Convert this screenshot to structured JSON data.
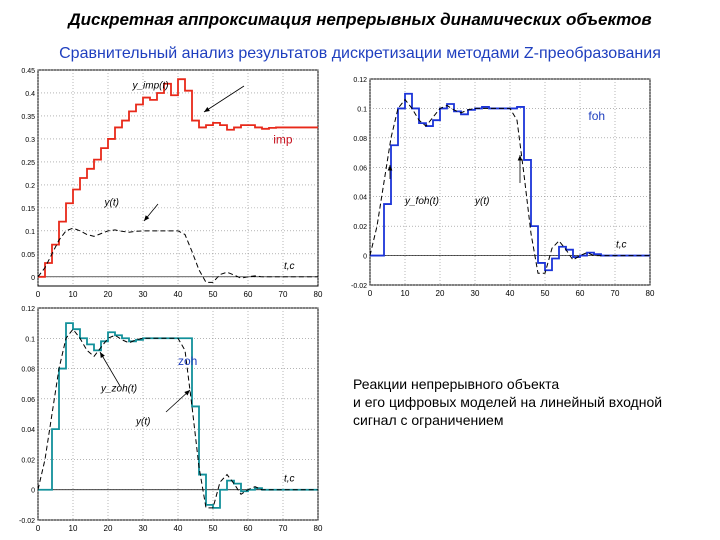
{
  "title": "Дискретная аппроксимация непрерывных динамических объектов",
  "subtitle": "Сравнительный анализ результатов дискретизации методами Z-преобразования",
  "caption": [
    "Реакции непрерывного объекта",
    "и его цифровых моделей на линейный входной",
    "сигнал с ограничением"
  ],
  "colors": {
    "imp": "#e8291a",
    "foh": "#1b34d8",
    "zoh": "#12909a",
    "continuous": "#000000",
    "subtitle": "#1f3fbf",
    "label": "#1f3fbf"
  },
  "chart_data": [
    {
      "id": "imp",
      "type": "line",
      "label": "imp",
      "x_axis_label": "t,c",
      "xlim": [
        0,
        80
      ],
      "ylim": [
        -0.02,
        0.45
      ],
      "x_ticks": [
        0,
        10,
        20,
        30,
        40,
        50,
        60,
        70,
        80
      ],
      "y_ticks": [
        0,
        0.05,
        0.1,
        0.15,
        0.2,
        0.25,
        0.3,
        0.35,
        0.4,
        0.45
      ],
      "y_tick_labels": [
        "0",
        "0.05",
        "0.1",
        "0.15",
        "0.2",
        "0.25",
        "0.3",
        "0.35",
        "0.4",
        "0.45"
      ],
      "grid": true,
      "series": [
        {
          "name": "y_imp(t)",
          "step": true,
          "x": [
            0,
            2,
            4,
            6,
            8,
            10,
            12,
            14,
            16,
            18,
            20,
            22,
            24,
            26,
            28,
            30,
            32,
            34,
            36,
            38,
            40,
            42,
            44,
            46,
            48,
            50,
            52,
            54,
            56,
            58,
            60,
            62,
            64,
            66,
            68,
            70,
            72,
            74,
            76,
            78,
            80
          ],
          "y": [
            0,
            0.03,
            0.07,
            0.12,
            0.16,
            0.19,
            0.215,
            0.235,
            0.255,
            0.28,
            0.3,
            0.325,
            0.34,
            0.36,
            0.375,
            0.39,
            0.385,
            0.4,
            0.42,
            0.395,
            0.43,
            0.405,
            0.34,
            0.325,
            0.33,
            0.335,
            0.33,
            0.32,
            0.325,
            0.33,
            0.33,
            0.325,
            0.322,
            0.324,
            0.325,
            0.325,
            0.325,
            0.325,
            0.325,
            0.325,
            0.325
          ]
        },
        {
          "name": "y(t)",
          "dashed": true,
          "x": [
            0,
            2,
            4,
            6,
            8,
            10,
            12,
            14,
            16,
            18,
            20,
            22,
            24,
            26,
            28,
            30,
            32,
            34,
            36,
            38,
            40,
            42,
            44,
            46,
            48,
            50,
            52,
            54,
            56,
            58,
            60,
            62,
            64,
            66,
            68,
            70,
            72,
            74,
            76,
            78,
            80
          ],
          "y": [
            0,
            0.02,
            0.05,
            0.08,
            0.1,
            0.106,
            0.1,
            0.092,
            0.088,
            0.094,
            0.1,
            0.102,
            0.099,
            0.097,
            0.099,
            0.1,
            0.1,
            0.1,
            0.1,
            0.1,
            0.1,
            0.092,
            0.055,
            0.015,
            -0.012,
            -0.012,
            0.005,
            0.01,
            0.004,
            -0.003,
            0,
            0.002,
            0,
            0,
            0,
            0,
            0,
            0,
            0,
            0,
            0
          ]
        }
      ],
      "annotations": [
        {
          "text": "y_imp(t)",
          "at": [
            27,
            0.41
          ]
        },
        {
          "text": "y(t)",
          "at": [
            19,
            0.155
          ]
        }
      ]
    },
    {
      "id": "foh",
      "type": "line",
      "label": "foh",
      "x_axis_label": "t,c",
      "xlim": [
        0,
        80
      ],
      "ylim": [
        -0.02,
        0.12
      ],
      "x_ticks": [
        0,
        10,
        20,
        30,
        40,
        50,
        60,
        70,
        80
      ],
      "y_ticks": [
        -0.02,
        0,
        0.02,
        0.04,
        0.06,
        0.08,
        0.1,
        0.12
      ],
      "y_tick_labels": [
        "-0.02",
        "0",
        "0.02",
        "0.04",
        "0.06",
        "0.08",
        "0.1",
        "0.12"
      ],
      "grid": true,
      "series": [
        {
          "name": "y_foh(t)",
          "step": true,
          "x": [
            0,
            2,
            4,
            6,
            8,
            10,
            12,
            14,
            16,
            18,
            20,
            22,
            24,
            26,
            28,
            30,
            32,
            34,
            36,
            38,
            40,
            42,
            44,
            46,
            48,
            50,
            52,
            54,
            56,
            58,
            60,
            62,
            64,
            66,
            68,
            70,
            72,
            74,
            76,
            78,
            80
          ],
          "y": [
            0,
            0,
            0.035,
            0.075,
            0.1,
            0.11,
            0.1,
            0.09,
            0.088,
            0.092,
            0.1,
            0.103,
            0.098,
            0.096,
            0.099,
            0.1,
            0.101,
            0.1,
            0.1,
            0.1,
            0.1,
            0.101,
            0.065,
            0.02,
            -0.005,
            -0.01,
            -0.002,
            0.006,
            0.004,
            -0.001,
            0,
            0.002,
            0.001,
            0,
            0,
            0,
            0,
            0,
            0,
            0,
            0
          ]
        },
        {
          "name": "y(t)",
          "dashed": true,
          "x": [
            0,
            2,
            4,
            6,
            8,
            10,
            12,
            14,
            16,
            18,
            20,
            22,
            24,
            26,
            28,
            30,
            32,
            34,
            36,
            38,
            40,
            42,
            44,
            46,
            48,
            50,
            52,
            54,
            56,
            58,
            60,
            62,
            64,
            66,
            68,
            70,
            72,
            74,
            76,
            78,
            80
          ],
          "y": [
            0,
            0.02,
            0.05,
            0.08,
            0.1,
            0.106,
            0.1,
            0.092,
            0.088,
            0.094,
            0.1,
            0.102,
            0.099,
            0.097,
            0.099,
            0.1,
            0.1,
            0.1,
            0.1,
            0.1,
            0.1,
            0.092,
            0.055,
            0.015,
            -0.012,
            -0.012,
            0.005,
            0.01,
            0.004,
            -0.003,
            0,
            0.002,
            0,
            0,
            0,
            0,
            0,
            0,
            0,
            0,
            0
          ]
        }
      ],
      "annotations": [
        {
          "text": "y_foh(t)",
          "at": [
            10,
            0.035
          ]
        },
        {
          "text": "y(t)",
          "at": [
            30,
            0.035
          ]
        }
      ]
    },
    {
      "id": "zoh",
      "type": "line",
      "label": "zoh",
      "x_axis_label": "t,c",
      "xlim": [
        0,
        80
      ],
      "ylim": [
        -0.02,
        0.12
      ],
      "x_ticks": [
        0,
        10,
        20,
        30,
        40,
        50,
        60,
        70,
        80
      ],
      "y_ticks": [
        -0.02,
        0,
        0.02,
        0.04,
        0.06,
        0.08,
        0.1,
        0.12
      ],
      "y_tick_labels": [
        "-0.02",
        "0",
        "0.02",
        "0.04",
        "0.06",
        "0.08",
        "0.1",
        "0.12"
      ],
      "grid": true,
      "series": [
        {
          "name": "y_zoh(t)",
          "step": true,
          "x": [
            0,
            2,
            4,
            6,
            8,
            10,
            12,
            14,
            16,
            18,
            20,
            22,
            24,
            26,
            28,
            30,
            32,
            34,
            36,
            38,
            40,
            42,
            44,
            46,
            48,
            50,
            52,
            54,
            56,
            58,
            60,
            62,
            64,
            66,
            68,
            70,
            72,
            74,
            76,
            78,
            80
          ],
          "y": [
            0,
            0,
            0.04,
            0.08,
            0.11,
            0.106,
            0.1,
            0.096,
            0.092,
            0.098,
            0.104,
            0.102,
            0.1,
            0.098,
            0.099,
            0.1,
            0.1,
            0.1,
            0.1,
            0.1,
            0.1,
            0.1,
            0.055,
            0.01,
            -0.01,
            -0.012,
            0,
            0.006,
            0.004,
            -0.001,
            0,
            0.001,
            0,
            0,
            0,
            0,
            0,
            0,
            0,
            0,
            0
          ]
        },
        {
          "name": "y(t)",
          "dashed": true,
          "x": [
            0,
            2,
            4,
            6,
            8,
            10,
            12,
            14,
            16,
            18,
            20,
            22,
            24,
            26,
            28,
            30,
            32,
            34,
            36,
            38,
            40,
            42,
            44,
            46,
            48,
            50,
            52,
            54,
            56,
            58,
            60,
            62,
            64,
            66,
            68,
            70,
            72,
            74,
            76,
            78,
            80
          ],
          "y": [
            0,
            0.02,
            0.05,
            0.08,
            0.1,
            0.106,
            0.1,
            0.092,
            0.088,
            0.094,
            0.1,
            0.102,
            0.099,
            0.097,
            0.099,
            0.1,
            0.1,
            0.1,
            0.1,
            0.1,
            0.1,
            0.092,
            0.055,
            0.015,
            -0.012,
            -0.012,
            0.005,
            0.01,
            0.004,
            -0.003,
            0,
            0.002,
            0,
            0,
            0,
            0,
            0,
            0,
            0,
            0,
            0
          ]
        }
      ],
      "annotations": [
        {
          "text": "y_zoh(t)",
          "at": [
            18,
            0.065
          ]
        },
        {
          "text": "y(t)",
          "at": [
            28,
            0.043
          ]
        }
      ]
    }
  ]
}
